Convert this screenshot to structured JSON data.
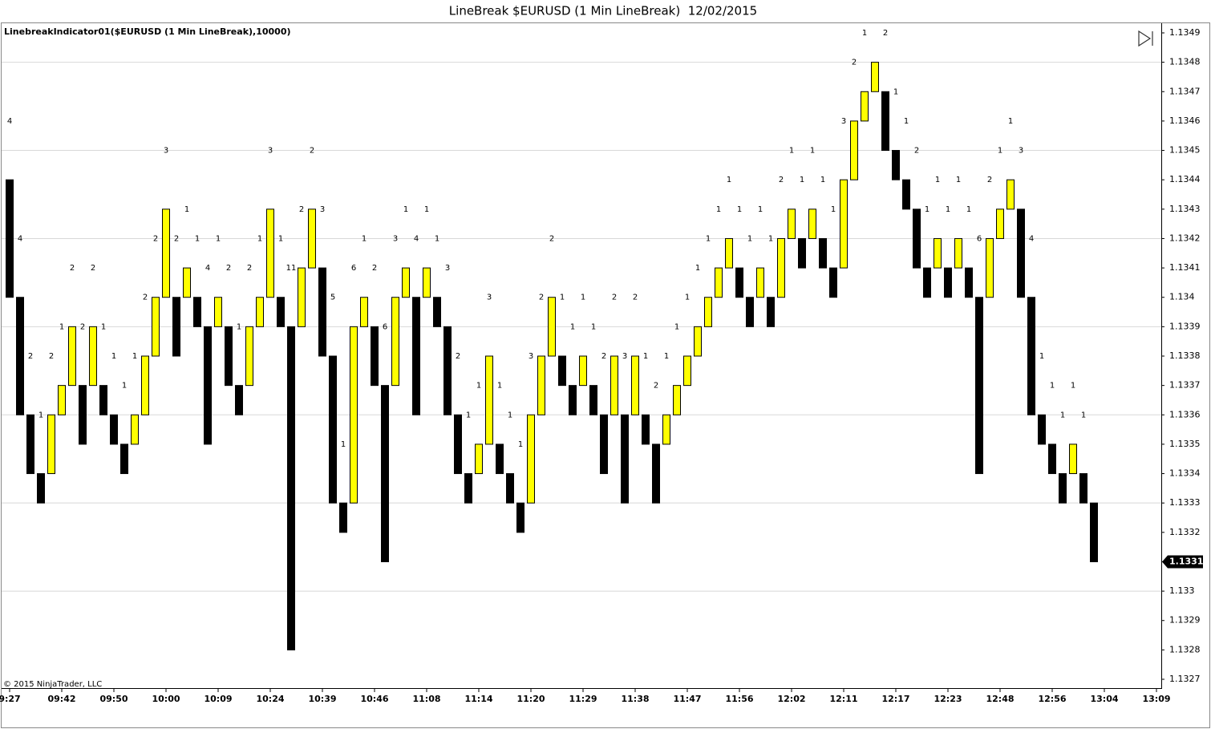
{
  "chart_data": {
    "type": "linebreak",
    "title": "LineBreak $EURUSD (1 Min LineBreak)  12/02/2015",
    "indicator_label": "LinebreakIndicator01($EURUSD (1 Min LineBreak),10000)",
    "copyright": "© 2015 NinjaTrader, LLC",
    "up_color": "#ffff00",
    "down_color": "#000000",
    "open": [
      1.1344,
      1.134,
      1.1336,
      1.1334,
      1.1334,
      1.1336,
      1.1337,
      1.1337,
      1.1337,
      1.1337,
      1.1336,
      1.1335,
      1.1335,
      1.1336,
      1.1338,
      1.134,
      1.134,
      1.134,
      1.134,
      1.1339,
      1.1339,
      1.1339,
      1.1337,
      1.1337,
      1.1339,
      1.134,
      1.134,
      1.1339,
      1.1339,
      1.1341,
      1.1341,
      1.1338,
      1.1333,
      1.1333,
      1.1339,
      1.1339,
      1.1337,
      1.1337,
      1.134,
      1.134,
      1.134,
      1.134,
      1.1339,
      1.1336,
      1.1334,
      1.1334,
      1.1335,
      1.1335,
      1.1334,
      1.1333,
      1.1333,
      1.1336,
      1.1338,
      1.1338,
      1.1337,
      1.1337,
      1.1337,
      1.1336,
      1.1336,
      1.1336,
      1.1336,
      1.1336,
      1.1335,
      1.1335,
      1.1336,
      1.1337,
      1.1338,
      1.1339,
      1.134,
      1.1341,
      1.1341,
      1.134,
      1.134,
      1.134,
      1.134,
      1.1342,
      1.1342,
      1.1342,
      1.1342,
      1.1341,
      1.1341,
      1.1344,
      1.1346,
      1.1347,
      1.1347,
      1.1345,
      1.1344,
      1.1343,
      1.1341,
      1.1341,
      1.1341,
      1.1341,
      1.1341,
      1.134,
      1.134,
      1.1342,
      1.1343,
      1.1343,
      1.134,
      1.1336,
      1.1335,
      1.1334,
      1.1334,
      1.1334,
      1.1333
    ],
    "close": [
      1.134,
      1.1336,
      1.1334,
      1.1333,
      1.1336,
      1.1337,
      1.1339,
      1.1335,
      1.1339,
      1.1336,
      1.1335,
      1.1334,
      1.1336,
      1.1338,
      1.134,
      1.1343,
      1.1338,
      1.1341,
      1.1339,
      1.1335,
      1.134,
      1.1337,
      1.1336,
      1.1339,
      1.134,
      1.1343,
      1.1339,
      1.1328,
      1.1341,
      1.1343,
      1.1338,
      1.1333,
      1.1332,
      1.1339,
      1.134,
      1.1337,
      1.1331,
      1.134,
      1.1341,
      1.1336,
      1.1341,
      1.1339,
      1.1336,
      1.1334,
      1.1333,
      1.1335,
      1.1338,
      1.1334,
      1.1333,
      1.1332,
      1.1336,
      1.1338,
      1.134,
      1.1337,
      1.1336,
      1.1338,
      1.1336,
      1.1334,
      1.1338,
      1.1333,
      1.1338,
      1.1335,
      1.1333,
      1.1336,
      1.1337,
      1.1338,
      1.1339,
      1.134,
      1.1341,
      1.1342,
      1.134,
      1.1339,
      1.1341,
      1.1339,
      1.1342,
      1.1343,
      1.1341,
      1.1343,
      1.1341,
      1.134,
      1.1344,
      1.1346,
      1.1347,
      1.1348,
      1.1345,
      1.1344,
      1.1343,
      1.1341,
      1.134,
      1.1342,
      1.134,
      1.1342,
      1.134,
      1.1334,
      1.1342,
      1.1343,
      1.1344,
      1.134,
      1.1336,
      1.1335,
      1.1334,
      1.1333,
      1.1335,
      1.1333,
      1.1331
    ],
    "labels": [
      4,
      4,
      2,
      1,
      2,
      1,
      2,
      2,
      2,
      1,
      1,
      1,
      1,
      2,
      2,
      3,
      2,
      1,
      1,
      4,
      1,
      2,
      1,
      2,
      1,
      3,
      1,
      11,
      2,
      2,
      3,
      5,
      1,
      6,
      1,
      2,
      6,
      3,
      1,
      4,
      1,
      1,
      3,
      2,
      1,
      1,
      3,
      1,
      1,
      1,
      3,
      2,
      2,
      1,
      1,
      1,
      1,
      2,
      2,
      3,
      2,
      1,
      2,
      1,
      1,
      1,
      1,
      1,
      1,
      1,
      1,
      1,
      1,
      1,
      2,
      1,
      1,
      1,
      1,
      1,
      3,
      2,
      1,
      null,
      2,
      1,
      1,
      2,
      1,
      1,
      1,
      1,
      1,
      6,
      2,
      1,
      1,
      3,
      4,
      1,
      1,
      1,
      1,
      1,
      null
    ],
    "xticks": [
      {
        "value": 0,
        "label": "9:27"
      },
      {
        "value": 5,
        "label": "09:42"
      },
      {
        "value": 10,
        "label": "09:50"
      },
      {
        "value": 15,
        "label": "10:00"
      },
      {
        "value": 20,
        "label": "10:09"
      },
      {
        "value": 25,
        "label": "10:24"
      },
      {
        "value": 30,
        "label": "10:39"
      },
      {
        "value": 35,
        "label": "10:46"
      },
      {
        "value": 40,
        "label": "11:08"
      },
      {
        "value": 45,
        "label": "11:14"
      },
      {
        "value": 50,
        "label": "11:20"
      },
      {
        "value": 55,
        "label": "11:29"
      },
      {
        "value": 60,
        "label": "11:38"
      },
      {
        "value": 65,
        "label": "11:47"
      },
      {
        "value": 70,
        "label": "11:56"
      },
      {
        "value": 75,
        "label": "12:02"
      },
      {
        "value": 80,
        "label": "12:11"
      },
      {
        "value": 85,
        "label": "12:17"
      },
      {
        "value": 90,
        "label": "12:23"
      },
      {
        "value": 95,
        "label": "12:48"
      },
      {
        "value": 100,
        "label": "12:56"
      },
      {
        "value": 105,
        "label": "13:04"
      },
      {
        "value": 110,
        "label": "13:09"
      }
    ],
    "ylim": [
      1.13267,
      1.13493
    ],
    "yticks": [
      1.1327,
      1.1328,
      1.1329,
      1.133,
      1.1331,
      1.1332,
      1.1333,
      1.1334,
      1.1335,
      1.1336,
      1.1337,
      1.1338,
      1.1339,
      1.134,
      1.1341,
      1.1342,
      1.1343,
      1.1344,
      1.1345,
      1.1346,
      1.1347,
      1.1348,
      1.1349
    ],
    "last_price": 1.1331,
    "grid": true
  }
}
